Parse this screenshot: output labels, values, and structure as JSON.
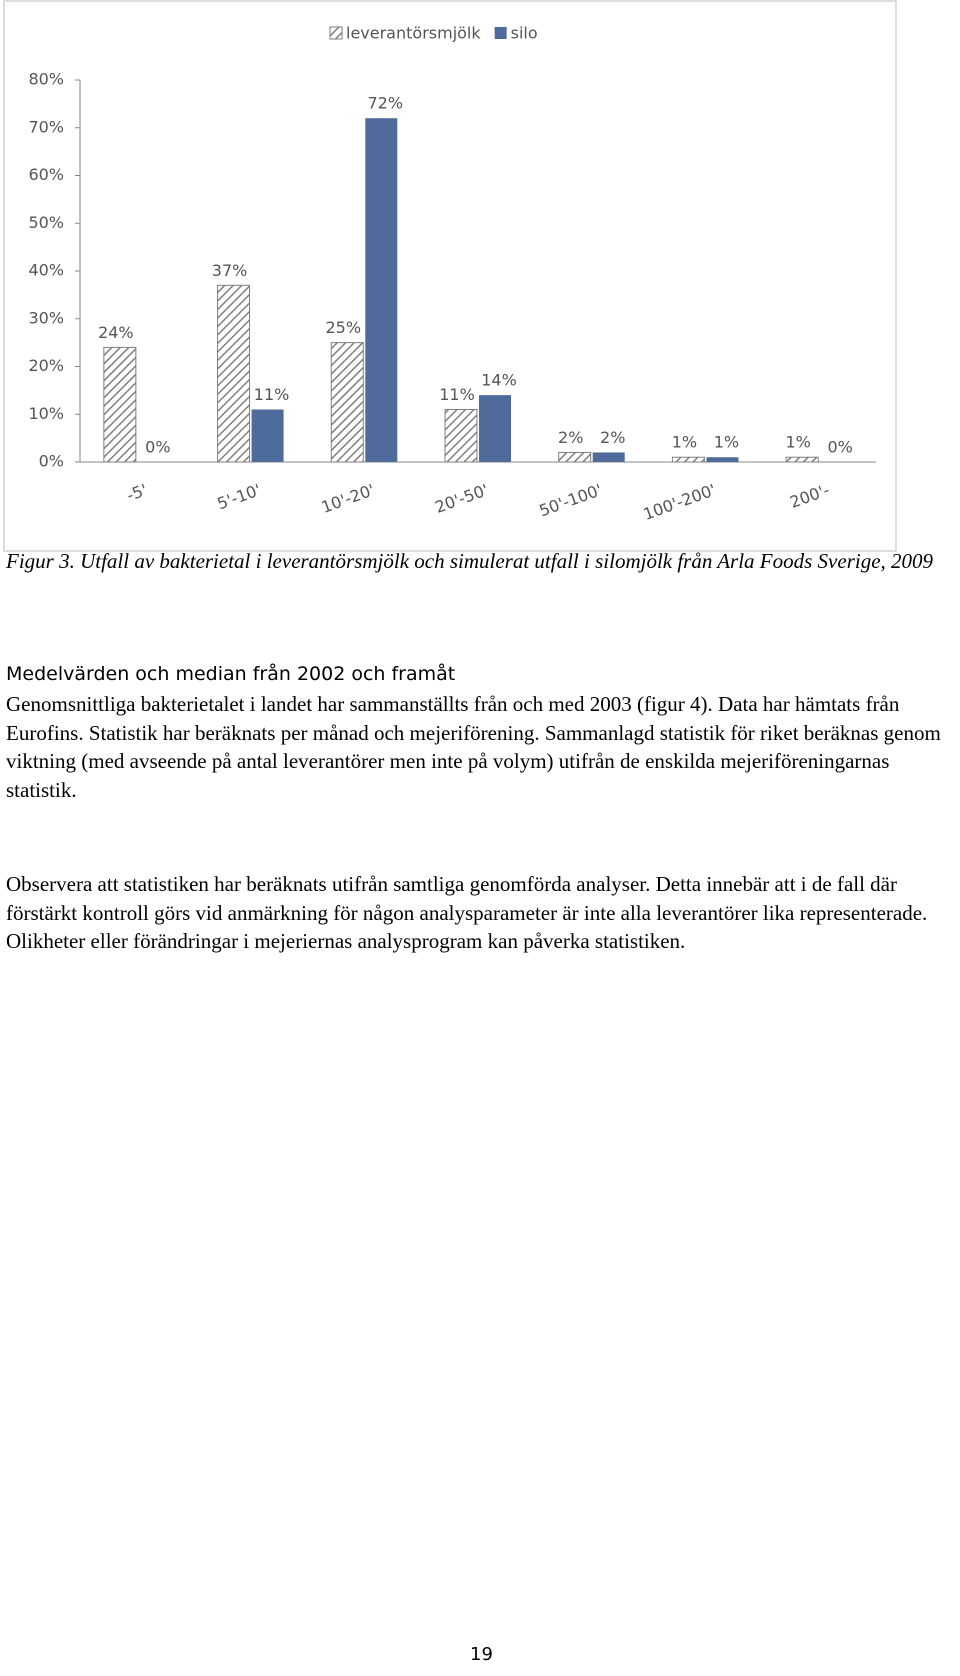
{
  "chart_data": {
    "type": "bar",
    "categories": [
      "-5'",
      "5'-10'",
      "10'-20'",
      "20'-50'",
      "50'-100'",
      "100'-200'",
      "200'-"
    ],
    "series": [
      {
        "name": "leverantörsmjölk",
        "color": "#7f7f7f",
        "hatch": true,
        "values": [
          24,
          37,
          25,
          11,
          2,
          1,
          1
        ],
        "value_labels": [
          "24%",
          "37%",
          "25%",
          "11%",
          "2%",
          "1%",
          "1%"
        ]
      },
      {
        "name": "silo",
        "color": "#4f6b9c",
        "hatch": false,
        "values": [
          0,
          11,
          72,
          14,
          2,
          1,
          0
        ],
        "value_labels": [
          "0%",
          "11%",
          "72%",
          "14%",
          "2%",
          "1%",
          "0%"
        ]
      }
    ],
    "ylim": [
      0,
      80
    ],
    "yticks": [
      {
        "value": 0,
        "label": "0%"
      },
      {
        "value": 10,
        "label": "10%"
      },
      {
        "value": 20,
        "label": "20%"
      },
      {
        "value": 30,
        "label": "30%"
      },
      {
        "value": 40,
        "label": "40%"
      },
      {
        "value": 50,
        "label": "50%"
      },
      {
        "value": 60,
        "label": "60%"
      },
      {
        "value": 70,
        "label": "70%"
      },
      {
        "value": 80,
        "label": "80%"
      }
    ],
    "grid": false,
    "legend": "top"
  },
  "caption": "Figur 3. Utfall av bakterietal i leverantörsmjölk och simulerat utfall i silomjölk från Arla Foods Sverige, 2009",
  "heading": "Medelvärden och median från 2002 och framåt",
  "paragraphs": [
    "Genomsnittliga bakterietalet i landet har sammanställts från och med 2003 (figur 4). Data har hämtats från Eurofins. Statistik har beräknats per månad och mejeriförening. Sammanlagd statistik för riket beräknas genom viktning (med avseende på antal leverantörer men inte på volym) utifrån de enskilda mejeriföreningarnas statistik.",
    "Observera att statistiken har beräknats utifrån samtliga genomförda analyser. Detta innebär att i de fall där förstärkt kontroll görs vid anmärkning för någon analysparameter är inte alla leverantörer lika representerade. Olikheter eller förändringar i mejeriernas analysprogram kan påverka statistiken."
  ],
  "page_number": "19"
}
